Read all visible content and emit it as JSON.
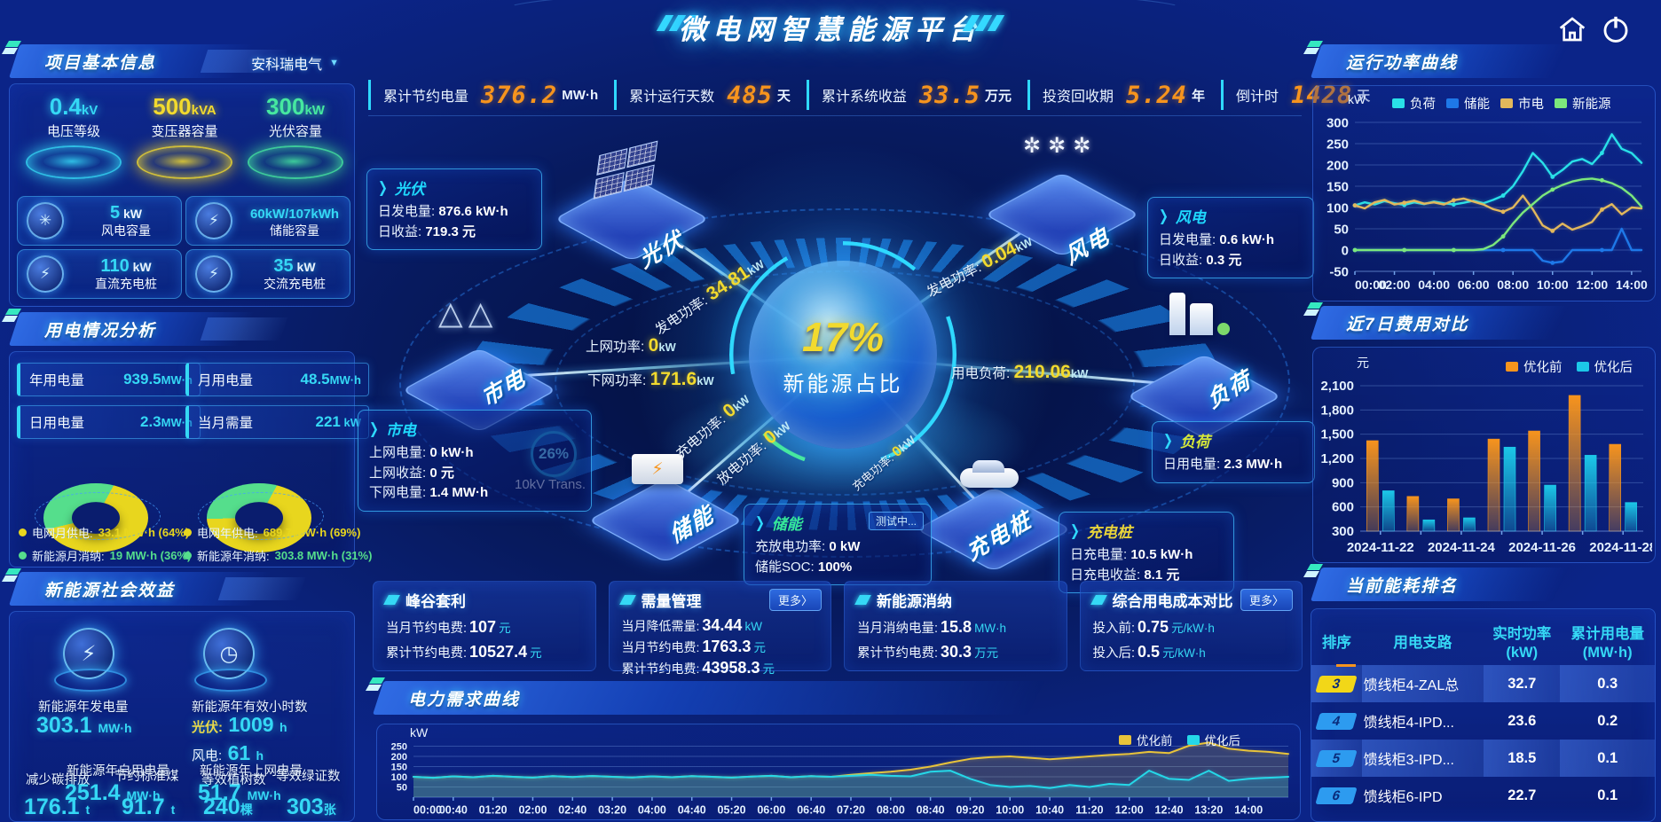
{
  "header": {
    "title": "微电网智慧能源平台",
    "icons": [
      {
        "name": "home-icon"
      },
      {
        "name": "power-icon"
      }
    ]
  },
  "kpi_bar": {
    "items": [
      {
        "label": "累计节约电量",
        "value": "376.2",
        "unit": "MW·h"
      },
      {
        "label": "累计运行天数",
        "value": "485",
        "unit": "天"
      },
      {
        "label": "累计系统收益",
        "value": "33.5",
        "unit": "万元"
      },
      {
        "label": "投资回收期",
        "value": "5.24",
        "unit": "年"
      },
      {
        "label": "倒计时",
        "value": "1428",
        "unit": "天"
      }
    ]
  },
  "project_panel": {
    "title": "项目基本信息",
    "company_select": "安科瑞电气",
    "pedestals": [
      {
        "value": "0.4",
        "unit": "kV",
        "label": "电压等级",
        "color": "#35D8F5"
      },
      {
        "value": "500",
        "unit": "kVA",
        "label": "变压器容量",
        "color": "#F2DA2E"
      },
      {
        "value": "300",
        "unit": "kW",
        "label": "光伏容量",
        "color": "#46E8A0"
      }
    ],
    "cards": [
      {
        "icon": "wind-turbine-icon",
        "glyph": "✳",
        "value": "5",
        "unit": " kW",
        "label": "风电容量"
      },
      {
        "icon": "battery-icon",
        "glyph": "⚡",
        "value": "60kW/107kWh",
        "unit": "",
        "label": "储能容量"
      },
      {
        "icon": "dc-charger-icon",
        "glyph": "⚡",
        "value": "110",
        "unit": " kW",
        "label": "直流充电桩"
      },
      {
        "icon": "ac-charger-icon",
        "glyph": "⚡",
        "value": "35",
        "unit": " kW",
        "label": "交流充电桩"
      }
    ]
  },
  "usage_panel": {
    "title": "用电情况分析",
    "stats": [
      {
        "label": "年用电量",
        "value": "939.5",
        "unit": "MW·h"
      },
      {
        "label": "月用电量",
        "value": "48.5",
        "unit": "MW·h"
      },
      {
        "label": "日用电量",
        "value": "2.3",
        "unit": "MW·h"
      },
      {
        "label": "当月需量",
        "value": "221",
        "unit": "kW"
      }
    ],
    "donuts": [
      {
        "slices": [
          64,
          36
        ],
        "colors": [
          "#E8D61E",
          "#55DE8C"
        ],
        "legend": [
          {
            "label": "电网月供电:",
            "value": "33.1 MW·h (64%)",
            "color": "#E8D61E"
          },
          {
            "label": "新能源月消纳:",
            "value": "19 MW·h (36%)",
            "color": "#55DE8C"
          }
        ]
      },
      {
        "slices": [
          69,
          31
        ],
        "colors": [
          "#E8D61E",
          "#55DE8C"
        ],
        "legend": [
          {
            "label": "电网年供电:",
            "value": "689.7 MW·h (69%)",
            "color": "#E8D61E"
          },
          {
            "label": "新能源年消纳:",
            "value": "303.8 MW·h (31%)",
            "color": "#55DE8C"
          }
        ]
      }
    ]
  },
  "benefit_panel": {
    "title": "新能源社会效益",
    "annual_gen": {
      "label": "新能源年发电量",
      "value": "303.1",
      "unit": "MW·h"
    },
    "valid_hours": {
      "label": "新能源年有效小时数",
      "pv_key": "光伏:",
      "pv_value": "1009",
      "pv_unit": "h",
      "wind_key": "风电:",
      "wind_value": "61",
      "wind_unit": "h"
    },
    "self_use": {
      "label": "新能源年自用电量",
      "value": "251.4",
      "unit": "MW·h"
    },
    "to_grid": {
      "label": "新能源年上网电量",
      "value": "51.7",
      "unit": "MW·h"
    },
    "co2": {
      "label": "减少碳排放",
      "value": "176.1",
      "unit": "t"
    },
    "coal": {
      "label": "节约标准煤",
      "value": "91.7",
      "unit": "t"
    },
    "trees": {
      "label": "等效植树数",
      "value": "240",
      "unit": "棵"
    },
    "certs": {
      "label": "等效绿证数",
      "value": "303",
      "unit": "张"
    }
  },
  "diagram": {
    "center": {
      "value": "17%",
      "label": "新能源占比"
    },
    "nodes": [
      {
        "label": "光伏"
      },
      {
        "label": "风电"
      },
      {
        "label": "市电"
      },
      {
        "label": "负荷"
      },
      {
        "label": "储能"
      },
      {
        "label": "充电桩"
      }
    ],
    "flows": [
      {
        "label": "发电功率:",
        "value": "34.81",
        "unit": "kW"
      },
      {
        "label": "上网功率:",
        "value": "0",
        "unit": "kW"
      },
      {
        "label": "下网功率:",
        "value": "171.6",
        "unit": "kW"
      },
      {
        "label": "充电功率:",
        "value": "0",
        "unit": "kW"
      },
      {
        "label": "放电功率:",
        "value": "0",
        "unit": "kW"
      },
      {
        "label": "发电功率:",
        "value": "0.04",
        "unit": "kW"
      },
      {
        "label": "用电负荷:",
        "value": "210.06",
        "unit": "kW"
      },
      {
        "label": "充电功率:",
        "value": "0",
        "unit": "kW"
      }
    ],
    "transformer": {
      "value": "26%",
      "label": "10kV Trans."
    },
    "info_boxes": {
      "pv": {
        "title": "光伏",
        "title_color": "#1FD9FF",
        "rows": [
          [
            "日发电量:",
            "876.6 kW·h"
          ],
          [
            "日收益:",
            "719.3 元"
          ]
        ]
      },
      "grid": {
        "title": "市电",
        "title_color": "#1FD9FF",
        "rows": [
          [
            "上网电量:",
            "0 kW·h"
          ],
          [
            "上网收益:",
            "0 元"
          ],
          [
            "下网电量:",
            "1.4 MW·h"
          ]
        ]
      },
      "storage": {
        "title": "储能",
        "title_color": "#35E89A",
        "badge": "测试中...",
        "rows": [
          [
            "充放电功率:",
            "0 kW"
          ],
          [
            "储能SOC:",
            "100%"
          ]
        ]
      },
      "wind": {
        "title": "风电",
        "title_color": "#1FD9FF",
        "rows": [
          [
            "日发电量:",
            "0.6 kW·h"
          ],
          [
            "日收益:",
            "0.3 元"
          ]
        ]
      },
      "load": {
        "title": "负荷",
        "title_color": "#D6E83A",
        "rows": [
          [
            "日用电量:",
            "2.3 MW·h"
          ]
        ]
      },
      "charger": {
        "title": "充电桩",
        "title_color": "#E8D43A",
        "rows": [
          [
            "日充电量:",
            "10.5 kW·h"
          ],
          [
            "日充电收益:",
            "8.1 元"
          ]
        ]
      }
    }
  },
  "benefit_cards": [
    {
      "title": "峰谷套利",
      "more": null,
      "rows": [
        [
          "当月节约电费:",
          "107",
          "元"
        ],
        [
          "累计节约电费:",
          "10527.4",
          "元"
        ]
      ]
    },
    {
      "title": "需量管理",
      "more": "更多〉",
      "rows": [
        [
          "当月降低需量:",
          "34.44",
          "kW"
        ],
        [
          "当月节约电费:",
          "1763.3",
          "元"
        ],
        [
          "累计节约电费:",
          "43958.3",
          "元"
        ]
      ]
    },
    {
      "title": "新能源消纳",
      "more": null,
      "rows": [
        [
          "当月消纳电量:",
          "15.8",
          "MW·h"
        ],
        [
          "累计节约电费:",
          "30.3",
          "万元"
        ]
      ]
    },
    {
      "title": "综合用电成本对比",
      "more": "更多〉",
      "rows": [
        [
          "投入前:",
          "0.75",
          "元/kW·h"
        ],
        [
          "投入后:",
          "0.5",
          "元/kW·h"
        ]
      ]
    }
  ],
  "ranking_panel": {
    "title": "当前能耗排名",
    "columns": [
      {
        "t1": "排序",
        "t2": ""
      },
      {
        "t1": "用电支路",
        "t2": ""
      },
      {
        "t1": "实时功率",
        "t2": "(kW)"
      },
      {
        "t1": "累计用电量",
        "t2": "(MW·h)"
      }
    ],
    "rows": [
      {
        "rank": "3",
        "branch": "馈线柜4-ZAL总",
        "power": "32.7",
        "energy": "0.3",
        "badge_color": "#F2D718",
        "highlight": true
      },
      {
        "rank": "4",
        "branch": "馈线柜4-IPD...",
        "power": "23.6",
        "energy": "0.2",
        "badge_color": "#2D9BF0",
        "highlight": false
      },
      {
        "rank": "5",
        "branch": "馈线柜3-IPD...",
        "power": "18.5",
        "energy": "0.1",
        "badge_color": "#2D9BF0",
        "highlight": true
      },
      {
        "rank": "6",
        "branch": "馈线柜6-IPD",
        "power": "22.7",
        "energy": "0.1",
        "badge_color": "#2D9BF0",
        "highlight": false
      }
    ]
  },
  "chart_data": [
    {
      "id": "power_curve",
      "type": "line",
      "title": "运行功率曲线",
      "ylabel": "kW",
      "ylim": [
        -50,
        300
      ],
      "yticks": [
        300,
        250,
        200,
        150,
        100,
        50,
        0,
        -50
      ],
      "x_labels": [
        "00:00",
        "02:00",
        "04:00",
        "06:00",
        "08:00",
        "10:00",
        "12:00",
        "14:00"
      ],
      "x_total_minutes": 870,
      "x_label_step_minutes": 120,
      "legend_position": "top",
      "series": [
        {
          "name": "负荷",
          "color": "#29E0E8",
          "values": [
            105,
            112,
            107,
            115,
            110,
            106,
            112,
            108,
            114,
            110,
            107,
            111,
            116,
            110,
            118,
            128,
            150,
            185,
            228,
            205,
            172,
            188,
            208,
            214,
            202,
            228,
            272,
            238,
            228,
            205
          ]
        },
        {
          "name": "储能",
          "color": "#1E78E8",
          "values": [
            0,
            0,
            0,
            0,
            0,
            0,
            0,
            0,
            0,
            0,
            0,
            0,
            0,
            0,
            0,
            0,
            0,
            0,
            0,
            -25,
            -30,
            -27,
            0,
            0,
            0,
            0,
            0,
            50,
            0,
            0
          ]
        },
        {
          "name": "市电",
          "color": "#E2B85C",
          "values": [
            105,
            98,
            112,
            118,
            107,
            111,
            116,
            109,
            112,
            107,
            117,
            121,
            114,
            107,
            96,
            90,
            100,
            128,
            96,
            58,
            45,
            62,
            48,
            56,
            66,
            95,
            108,
            84,
            100,
            98
          ]
        },
        {
          "name": "新能源",
          "color": "#7CE87C",
          "values": [
            0,
            0,
            0,
            0,
            0,
            0,
            0,
            0,
            0,
            0,
            0,
            0,
            0,
            2,
            12,
            32,
            62,
            88,
            108,
            128,
            142,
            153,
            161,
            166,
            168,
            164,
            157,
            146,
            128,
            102
          ]
        }
      ]
    },
    {
      "id": "cost_compare",
      "type": "bar",
      "title": "近7日费用对比",
      "ylabel": "元",
      "ylim": [
        300,
        2100
      ],
      "yticks": [
        2100,
        1800,
        1500,
        1200,
        900,
        600,
        300
      ],
      "categories": [
        "2024-11-22",
        "2024-11-23",
        "2024-11-24",
        "2024-11-25",
        "2024-11-26",
        "2024-11-27",
        "2024-11-28"
      ],
      "x_labels_shown": [
        "2024-11-22",
        "2024-11-24",
        "2024-11-26",
        "2024-11-28"
      ],
      "legend_position": "top-right",
      "series": [
        {
          "name": "优化前",
          "color": "#F7941D",
          "values": [
            1420,
            730,
            700,
            1440,
            1540,
            1980,
            1375
          ]
        },
        {
          "name": "优化后",
          "color": "#1CC8E8",
          "values": [
            800,
            440,
            465,
            1340,
            870,
            1240,
            655
          ]
        }
      ]
    },
    {
      "id": "demand_curve",
      "type": "line",
      "title": "电力需求曲线",
      "ylabel": "kW",
      "ylim": [
        0,
        300
      ],
      "yticks": [
        250,
        200,
        150,
        100,
        50
      ],
      "x_labels": [
        "00:00",
        "00:40",
        "01:20",
        "02:00",
        "02:40",
        "03:20",
        "04:00",
        "04:40",
        "05:20",
        "06:00",
        "06:40",
        "07:20",
        "08:00",
        "08:40",
        "09:20",
        "10:00",
        "10:40",
        "11:20",
        "12:00",
        "12:40",
        "13:20",
        "14:00"
      ],
      "x_total_minutes": 880,
      "x_label_step_minutes": 40,
      "legend_position": "top-right",
      "series": [
        {
          "name": "优化前",
          "color": "#E8C33A",
          "values": [
            100,
            95,
            102,
            98,
            105,
            100,
            96,
            103,
            99,
            104,
            100,
            97,
            102,
            98,
            103,
            100,
            96,
            101,
            105,
            98,
            103,
            100,
            110,
            118,
            125,
            135,
            150,
            170,
            188,
            196,
            200,
            193,
            186,
            192,
            200,
            207,
            212,
            222,
            216,
            252,
            268,
            238,
            228,
            222,
            212
          ]
        },
        {
          "name": "优化后",
          "color": "#25D8E8",
          "values": [
            100,
            95,
            102,
            98,
            105,
            100,
            96,
            103,
            99,
            104,
            100,
            97,
            102,
            98,
            103,
            100,
            96,
            101,
            105,
            98,
            103,
            100,
            105,
            110,
            105,
            102,
            125,
            130,
            90,
            60,
            50,
            55,
            45,
            60,
            50,
            65,
            60,
            130,
            90,
            85,
            130,
            80,
            90,
            95,
            100
          ]
        }
      ]
    }
  ]
}
